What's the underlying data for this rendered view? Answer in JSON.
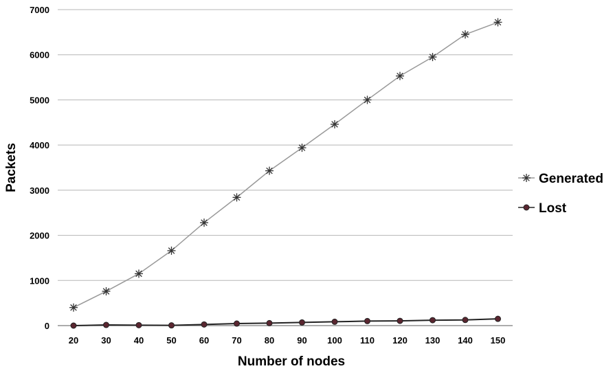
{
  "chart_data": {
    "type": "line",
    "title": "",
    "xlabel": "Number of nodes",
    "ylabel": "Packets",
    "x": [
      20,
      30,
      40,
      50,
      60,
      70,
      80,
      90,
      100,
      110,
      120,
      130,
      140,
      150
    ],
    "ylim": [
      0,
      7000
    ],
    "yticks": [
      0,
      1000,
      2000,
      3000,
      4000,
      5000,
      6000,
      7000
    ],
    "grid": "horizontal",
    "legend_position": "right",
    "series": [
      {
        "name": "Generated",
        "marker": "asterisk",
        "color": "#999999",
        "marker_color": "#333333",
        "values": [
          400,
          760,
          1150,
          1660,
          2280,
          2840,
          3430,
          3940,
          4460,
          5000,
          5530,
          5950,
          6450,
          6720
        ]
      },
      {
        "name": "Lost",
        "marker": "circle",
        "color": "#222222",
        "marker_color": "#5a2630",
        "values": [
          0,
          15,
          10,
          5,
          25,
          45,
          55,
          70,
          85,
          100,
          105,
          120,
          125,
          150
        ]
      }
    ]
  }
}
